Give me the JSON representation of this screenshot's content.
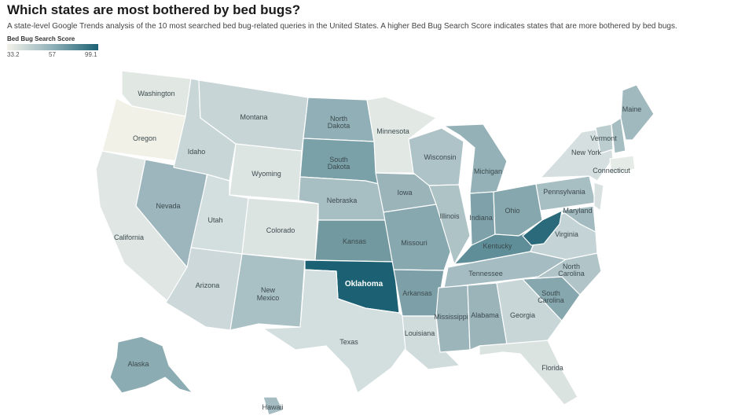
{
  "title": "Which states are most bothered by bed bugs?",
  "subtitle": "A state-level Google Trends analysis of the 10 most searched bed bug-related queries in the United States. A higher Bed Bug Search Score indicates states that are more bothered by bed bugs.",
  "legend": {
    "title": "Bed Bug Search Score",
    "min": "33.2",
    "mid": "57",
    "max": "99.1",
    "colors": {
      "low": "#f3f2ea",
      "mid": "#8fb0b8",
      "high": "#1c6173"
    }
  },
  "states": {
    "Washington": "Washington",
    "Oregon": "Oregon",
    "California": "California",
    "Nevada": "Nevada",
    "Idaho": "Idaho",
    "Montana": "Montana",
    "Wyoming": "Wyoming",
    "Utah": "Utah",
    "Arizona": "Arizona",
    "Colorado": "Colorado",
    "NewMexico1": "New",
    "NewMexico2": "Mexico",
    "NorthDakota1": "North",
    "NorthDakota2": "Dakota",
    "SouthDakota1": "South",
    "SouthDakota2": "Dakota",
    "Nebraska": "Nebraska",
    "Kansas": "Kansas",
    "Oklahoma": "Oklahoma",
    "Texas": "Texas",
    "Minnesota": "Minnesota",
    "Iowa": "Iowa",
    "Missouri": "Missouri",
    "Arkansas": "Arkansas",
    "Louisiana": "Louisiana",
    "Wisconsin": "Wisconsin",
    "Illinois": "Illinois",
    "Michigan": "Michigan",
    "Indiana": "Indiana",
    "Ohio": "Ohio",
    "Kentucky": "Kentucky",
    "Tennessee": "Tennessee",
    "Mississippi": "Mississippi",
    "Alabama": "Alabama",
    "Georgia": "Georgia",
    "Florida": "Florida",
    "SouthCarolina1": "South",
    "SouthCarolina2": "Carolina",
    "NorthCarolina1": "North",
    "NorthCarolina2": "Carolina",
    "Virginia": "Virginia",
    "Maryland": "Maryland",
    "Pennsylvania": "Pennsylvania",
    "NewYork": "New York",
    "Vermont": "Vermont",
    "Maine": "Maine",
    "Connecticut": "Connecticut",
    "Alaska": "Alaska",
    "Hawaii": "Hawaii"
  }
}
